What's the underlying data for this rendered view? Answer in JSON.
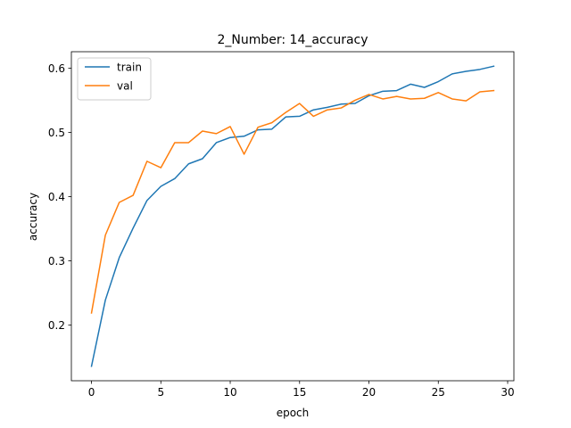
{
  "chart_data": {
    "type": "line",
    "title": "2_Number: 14_accuracy",
    "xlabel": "epoch",
    "ylabel": "accuracy",
    "xlim": [
      -1.45,
      30.45
    ],
    "ylim": [
      0.1135,
      0.6255
    ],
    "xticks": [
      0,
      5,
      10,
      15,
      20,
      25,
      30
    ],
    "yticks": [
      0.2,
      0.3,
      0.4,
      0.5,
      0.6
    ],
    "xtick_labels": [
      "0",
      "5",
      "10",
      "15",
      "20",
      "25",
      "30"
    ],
    "ytick_labels": [
      "0.2",
      "0.3",
      "0.4",
      "0.5",
      "0.6"
    ],
    "grid": false,
    "legend_position": "upper-left",
    "x": [
      0,
      1,
      2,
      3,
      4,
      5,
      6,
      7,
      8,
      9,
      10,
      11,
      12,
      13,
      14,
      15,
      16,
      17,
      18,
      19,
      20,
      21,
      22,
      23,
      24,
      25,
      26,
      27,
      28,
      29
    ],
    "series": [
      {
        "name": "train",
        "color": "#1f77b4",
        "values": [
          0.136,
          0.239,
          0.305,
          0.351,
          0.394,
          0.416,
          0.428,
          0.451,
          0.459,
          0.484,
          0.492,
          0.494,
          0.504,
          0.505,
          0.524,
          0.525,
          0.535,
          0.539,
          0.544,
          0.545,
          0.557,
          0.564,
          0.565,
          0.575,
          0.57,
          0.579,
          0.591,
          0.595,
          0.598,
          0.603
        ]
      },
      {
        "name": "val",
        "color": "#ff7f0e",
        "values": [
          0.219,
          0.34,
          0.391,
          0.402,
          0.455,
          0.445,
          0.484,
          0.484,
          0.502,
          0.498,
          0.509,
          0.466,
          0.508,
          0.515,
          0.531,
          0.545,
          0.525,
          0.535,
          0.538,
          0.55,
          0.559,
          0.552,
          0.556,
          0.552,
          0.553,
          0.562,
          0.552,
          0.549,
          0.563,
          0.565
        ]
      }
    ]
  }
}
